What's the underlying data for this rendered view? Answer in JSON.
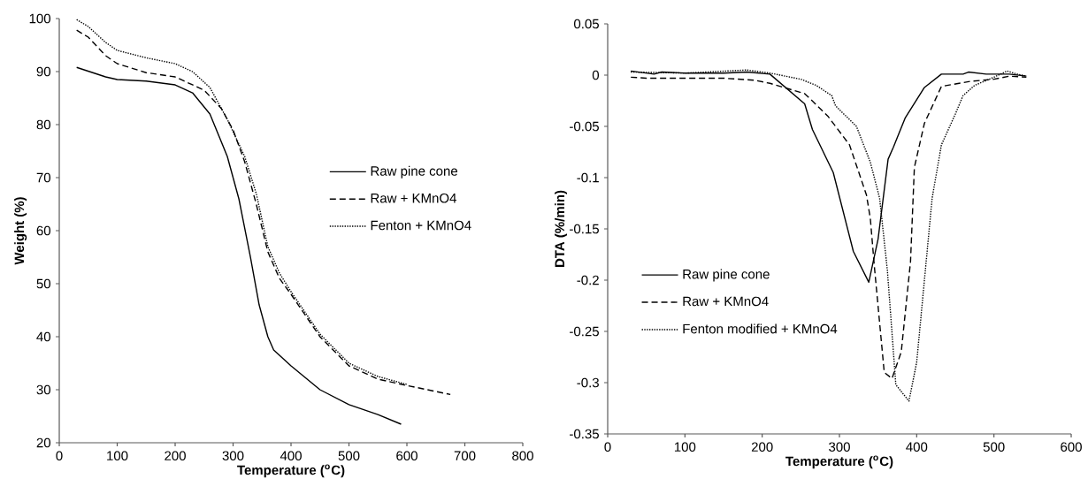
{
  "chart_data": [
    {
      "type": "line",
      "xlabel": "Temperature ($^{o}$C)",
      "ylabel": "Weight (%)",
      "xlim": [
        0,
        800
      ],
      "ylim": [
        20,
        100
      ],
      "xticks": [
        0,
        100,
        200,
        300,
        400,
        500,
        600,
        700,
        800
      ],
      "yticks": [
        20,
        30,
        40,
        50,
        60,
        70,
        80,
        90,
        100
      ],
      "grid": false,
      "legend": "right",
      "marker": "none",
      "series": [
        {
          "name": "Raw pine cone",
          "color": "#000000",
          "line_style": "solid",
          "x": [
            30,
            80,
            100,
            150,
            200,
            230,
            260,
            290,
            310,
            330,
            345,
            360,
            370,
            400,
            450,
            500,
            550,
            590
          ],
          "values": [
            90.8,
            89,
            88.5,
            88.2,
            87.5,
            86,
            82,
            74,
            66,
            55,
            46,
            40,
            37.5,
            34.5,
            30,
            27.2,
            25.3,
            23.5
          ]
        },
        {
          "name": "Raw + KMnO4",
          "color": "#000000",
          "line_style": "dashed",
          "x": [
            30,
            50,
            80,
            100,
            150,
            200,
            250,
            280,
            300,
            320,
            340,
            360,
            380,
            400,
            450,
            500,
            550,
            600,
            675
          ],
          "values": [
            97.8,
            96.5,
            93,
            91.5,
            89.8,
            89,
            86.5,
            83,
            79,
            73,
            65,
            56,
            51,
            48,
            40,
            34.5,
            32,
            30.8,
            29.1
          ]
        },
        {
          "name": "Fenton + KMnO4",
          "color": "#000000",
          "line_style": "dotted",
          "x": [
            30,
            50,
            80,
            100,
            150,
            200,
            230,
            260,
            290,
            320,
            340,
            360,
            380,
            400,
            450,
            500,
            550,
            600
          ],
          "values": [
            99.8,
            98.5,
            95.5,
            94,
            92.6,
            91.5,
            90,
            87,
            81,
            74,
            67,
            57,
            52,
            48.5,
            40.5,
            35,
            32.5,
            31
          ]
        }
      ]
    },
    {
      "type": "line",
      "xlabel": "Temperature ($^{o}$C)",
      "ylabel": "DTA (%/min)",
      "xlim": [
        0,
        600
      ],
      "ylim": [
        -0.35,
        0.05
      ],
      "xticks": [
        0,
        100,
        200,
        300,
        400,
        500,
        600
      ],
      "yticks": [
        -0.35,
        -0.3,
        -0.25,
        -0.2,
        -0.15,
        -0.1,
        -0.05,
        0,
        0.05
      ],
      "grid": false,
      "legend": "bottom left",
      "marker": "none",
      "series": [
        {
          "name": "Raw pine cone",
          "color": "#000000",
          "line_style": "solid",
          "x": [
            30,
            60,
            70,
            100,
            150,
            180,
            210,
            255,
            265,
            292,
            318,
            338,
            350,
            363,
            370,
            385,
            410,
            432,
            460,
            467,
            490,
            520,
            542
          ],
          "values": [
            0.004,
            0.001,
            0.003,
            0.002,
            0.002,
            0.003,
            0.001,
            -0.028,
            -0.053,
            -0.095,
            -0.172,
            -0.202,
            -0.16,
            -0.082,
            -0.07,
            -0.042,
            -0.012,
            0.001,
            0.001,
            0.003,
            0.001,
            0.001,
            -0.001
          ]
        },
        {
          "name": "Raw + KMnO4",
          "color": "#000000",
          "line_style": "dashed",
          "x": [
            30,
            50,
            100,
            150,
            190,
            210,
            255,
            285,
            313,
            335,
            340,
            345,
            358,
            368,
            380,
            392,
            397,
            410,
            432,
            470,
            500,
            520,
            542
          ],
          "values": [
            -0.002,
            -0.003,
            -0.003,
            -0.003,
            -0.005,
            -0.008,
            -0.018,
            -0.04,
            -0.068,
            -0.117,
            -0.14,
            -0.185,
            -0.29,
            -0.296,
            -0.27,
            -0.182,
            -0.09,
            -0.047,
            -0.011,
            -0.006,
            -0.004,
            -0.001,
            -0.002
          ]
        },
        {
          "name": "Fenton modified + KMnO4",
          "color": "#000000",
          "line_style": "dotted",
          "x": [
            30,
            100,
            180,
            210,
            250,
            270,
            290,
            295,
            322,
            340,
            352,
            362,
            373,
            390,
            400,
            410,
            420,
            432,
            450,
            460,
            475,
            500,
            517,
            530,
            542
          ],
          "values": [
            0.003,
            0.002,
            0.005,
            0.002,
            -0.004,
            -0.01,
            -0.02,
            -0.03,
            -0.05,
            -0.085,
            -0.12,
            -0.19,
            -0.302,
            -0.318,
            -0.28,
            -0.2,
            -0.12,
            -0.068,
            -0.038,
            -0.02,
            -0.01,
            -0.002,
            0.004,
            0.001,
            -0.001
          ]
        }
      ]
    }
  ]
}
